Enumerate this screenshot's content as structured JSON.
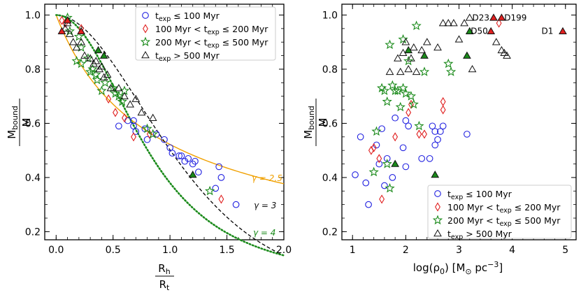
{
  "chart_data": [
    {
      "type": "scatter",
      "panel": "left",
      "xlabel_top": "R_h",
      "xlabel_bottom": "R_t",
      "ylabel_top": "M_bound",
      "ylabel_bottom": "M",
      "xlim": [
        -0.1,
        2.0
      ],
      "ylim": [
        0.17,
        1.04
      ],
      "xticks": [
        "0.0",
        "0.5",
        "1.0",
        "1.5",
        "2.0"
      ],
      "yticks": [
        "0.2",
        "0.4",
        "0.6",
        "0.8",
        "1.0"
      ],
      "xtick_values": [
        0.0,
        0.5,
        1.0,
        1.5,
        2.0
      ],
      "ytick_values": [
        0.2,
        0.4,
        0.6,
        0.8,
        1.0
      ],
      "legend": [
        {
          "label": "t_exp ≤ 100 Myr",
          "marker": "circle",
          "color": "#1f1fe0"
        },
        {
          "label": "100 Myr < t_exp ≤ 200 Myr",
          "marker": "diamond",
          "color": "#e02020"
        },
        {
          "label": "200 Myr < t_exp ≤ 500 Myr",
          "marker": "star",
          "color": "#1a8a1a"
        },
        {
          "label": "t_exp > 500 Myr",
          "marker": "triangle",
          "color": "#111111"
        }
      ],
      "legend_lines": [
        {
          "pre": "t",
          "sub": "exp",
          "post": " ≤ 100 Myr"
        },
        {
          "pre": "100 Myr < t",
          "sub": "exp",
          "post": " ≤ 200 Myr"
        },
        {
          "pre": "200 Myr < t",
          "sub": "exp",
          "post": " ≤ 500 Myr"
        },
        {
          "pre": "t",
          "sub": "exp",
          "post": " > 500 Myr"
        }
      ],
      "curves": [
        {
          "label": "γ = 2.5",
          "style": "solid",
          "color": "#f0a000"
        },
        {
          "label": "γ = 3",
          "style": "dashed",
          "color": "#000000"
        },
        {
          "label": "γ = 4",
          "style": "dotted",
          "color": "#1a8a1a"
        }
      ],
      "series": {
        "circle": [
          [
            0.55,
            0.59
          ],
          [
            0.63,
            0.61
          ],
          [
            0.68,
            0.59
          ],
          [
            0.7,
            0.57
          ],
          [
            0.68,
            0.61
          ],
          [
            0.78,
            0.58
          ],
          [
            0.8,
            0.54
          ],
          [
            0.88,
            0.56
          ],
          [
            0.95,
            0.54
          ],
          [
            1.0,
            0.51
          ],
          [
            1.02,
            0.49
          ],
          [
            1.08,
            0.48
          ],
          [
            1.1,
            0.48
          ],
          [
            1.13,
            0.46
          ],
          [
            1.16,
            0.47
          ],
          [
            1.2,
            0.45
          ],
          [
            1.22,
            0.46
          ],
          [
            1.25,
            0.42
          ],
          [
            1.43,
            0.44
          ],
          [
            1.45,
            0.4
          ],
          [
            1.4,
            0.36
          ],
          [
            1.58,
            0.3
          ]
        ],
        "diamond": [
          [
            0.05,
            0.98
          ],
          [
            0.08,
            0.97
          ],
          [
            0.22,
            0.95
          ],
          [
            0.46,
            0.69
          ],
          [
            0.52,
            0.64
          ],
          [
            0.6,
            0.62
          ],
          [
            0.68,
            0.55
          ],
          [
            1.45,
            0.32
          ],
          [
            0.82,
            0.56
          ]
        ],
        "star": [
          [
            0.1,
            0.99
          ],
          [
            0.12,
            0.94
          ],
          [
            0.2,
            0.92
          ],
          [
            0.22,
            0.88
          ],
          [
            0.28,
            0.84
          ],
          [
            0.3,
            0.79
          ],
          [
            0.18,
            0.83
          ],
          [
            0.22,
            0.82
          ],
          [
            0.32,
            0.8
          ],
          [
            0.35,
            0.78
          ],
          [
            0.36,
            0.76
          ],
          [
            0.4,
            0.72
          ],
          [
            0.43,
            0.75
          ],
          [
            0.5,
            0.73
          ],
          [
            0.52,
            0.71
          ],
          [
            0.55,
            0.7
          ],
          [
            0.58,
            0.68
          ],
          [
            0.6,
            0.72
          ],
          [
            0.8,
            0.58
          ],
          [
            0.85,
            0.56
          ],
          [
            1.35,
            0.35
          ]
        ],
        "triangle": [
          [
            0.08,
            0.95
          ],
          [
            0.1,
            0.97
          ],
          [
            0.12,
            0.93
          ],
          [
            0.15,
            0.9
          ],
          [
            0.18,
            0.88
          ],
          [
            0.22,
            0.9
          ],
          [
            0.25,
            0.85
          ],
          [
            0.3,
            0.84
          ],
          [
            0.33,
            0.82
          ],
          [
            0.35,
            0.83
          ],
          [
            0.38,
            0.8
          ],
          [
            0.4,
            0.81
          ],
          [
            0.42,
            0.77
          ],
          [
            0.45,
            0.78
          ],
          [
            0.48,
            0.73
          ],
          [
            0.55,
            0.73
          ],
          [
            0.6,
            0.7
          ],
          [
            0.65,
            0.67
          ],
          [
            0.7,
            0.69
          ],
          [
            0.75,
            0.64
          ],
          [
            0.85,
            0.62
          ]
        ],
        "triangle_filled_red": [
          [
            0.05,
            0.94
          ],
          [
            0.1,
            0.98
          ],
          [
            0.22,
            0.94
          ]
        ],
        "triangle_filled_green": [
          [
            0.37,
            0.87
          ],
          [
            0.42,
            0.85
          ],
          [
            1.2,
            0.41
          ]
        ]
      }
    },
    {
      "type": "scatter",
      "panel": "right",
      "xlabel": "log(ρ₀) [M⊙ pc⁻³]",
      "xlabel_parts": {
        "pre": "log(ρ",
        "sub": "0",
        "mid": ") [M",
        "sub2": "⊙",
        "post": " pc",
        "sup": "−3",
        "end": "]"
      },
      "ylabel_top": "M_bound",
      "ylabel_bottom": "M",
      "xlim": [
        0.8,
        5.2
      ],
      "ylim": [
        0.17,
        1.04
      ],
      "xticks": [
        "1",
        "2",
        "3",
        "4",
        "5"
      ],
      "yticks": [
        "0.2",
        "0.4",
        "0.6",
        "0.8",
        "1.0"
      ],
      "xtick_values": [
        1,
        2,
        3,
        4,
        5
      ],
      "ytick_values": [
        0.2,
        0.4,
        0.6,
        0.8,
        1.0
      ],
      "annotations": [
        {
          "text": "D23",
          "x": 3.25,
          "y": 0.99
        },
        {
          "text": "D199",
          "x": 3.85,
          "y": 0.99
        },
        {
          "text": "D50",
          "x": 3.22,
          "y": 0.94
        },
        {
          "text": "D1",
          "x": 4.55,
          "y": 0.94
        }
      ],
      "legend_lines": [
        {
          "pre": "t",
          "sub": "exp",
          "post": " ≤ 100 Myr"
        },
        {
          "pre": "100 Myr < t",
          "sub": "exp",
          "post": " ≤ 200 Myr"
        },
        {
          "pre": "200 Myr < t",
          "sub": "exp",
          "post": " ≤ 500 Myr"
        },
        {
          "pre": "t",
          "sub": "exp",
          "post": " > 500 Myr"
        }
      ],
      "series": {
        "circle": [
          [
            1.05,
            0.41
          ],
          [
            1.15,
            0.55
          ],
          [
            1.25,
            0.38
          ],
          [
            1.3,
            0.3
          ],
          [
            1.45,
            0.52
          ],
          [
            1.5,
            0.45
          ],
          [
            1.55,
            0.58
          ],
          [
            1.6,
            0.37
          ],
          [
            1.65,
            0.47
          ],
          [
            1.75,
            0.4
          ],
          [
            1.8,
            0.62
          ],
          [
            1.95,
            0.51
          ],
          [
            2.0,
            0.44
          ],
          [
            2.0,
            0.61
          ],
          [
            2.05,
            0.59
          ],
          [
            2.3,
            0.47
          ],
          [
            2.45,
            0.47
          ],
          [
            2.5,
            0.59
          ],
          [
            2.6,
            0.54
          ],
          [
            2.65,
            0.57
          ],
          [
            2.7,
            0.59
          ],
          [
            3.15,
            0.56
          ],
          [
            2.55,
            0.52
          ],
          [
            2.55,
            0.57
          ]
        ],
        "diamond": [
          [
            1.35,
            0.5
          ],
          [
            1.4,
            0.51
          ],
          [
            1.5,
            0.47
          ],
          [
            1.55,
            0.32
          ],
          [
            1.8,
            0.55
          ],
          [
            2.05,
            0.64
          ],
          [
            2.1,
            0.67
          ],
          [
            2.25,
            0.56
          ],
          [
            2.35,
            0.56
          ],
          [
            2.7,
            0.65
          ],
          [
            2.7,
            0.68
          ],
          [
            3.75,
            0.97
          ]
        ],
        "star": [
          [
            1.4,
            0.42
          ],
          [
            1.45,
            0.57
          ],
          [
            1.55,
            0.73
          ],
          [
            1.6,
            0.72
          ],
          [
            1.65,
            0.68
          ],
          [
            1.65,
            0.45
          ],
          [
            1.7,
            0.36
          ],
          [
            1.7,
            0.89
          ],
          [
            1.75,
            0.74
          ],
          [
            1.8,
            0.72
          ],
          [
            1.85,
            0.72
          ],
          [
            1.9,
            0.66
          ],
          [
            1.95,
            0.73
          ],
          [
            2.0,
            0.71
          ],
          [
            2.05,
            0.83
          ],
          [
            2.1,
            0.7
          ],
          [
            2.15,
            0.67
          ],
          [
            2.2,
            0.96
          ],
          [
            2.35,
            0.79
          ],
          [
            2.8,
            0.82
          ],
          [
            2.85,
            0.79
          ],
          [
            1.95,
            0.91
          ],
          [
            2.25,
            0.59
          ]
        ],
        "triangle": [
          [
            1.7,
            0.79
          ],
          [
            1.85,
            0.84
          ],
          [
            1.9,
            0.79
          ],
          [
            1.95,
            0.86
          ],
          [
            2.0,
            0.9
          ],
          [
            2.05,
            0.8
          ],
          [
            2.1,
            0.84
          ],
          [
            2.15,
            0.88
          ],
          [
            2.2,
            0.79
          ],
          [
            2.3,
            0.87
          ],
          [
            2.4,
            0.9
          ],
          [
            2.6,
            0.88
          ],
          [
            2.7,
            0.97
          ],
          [
            2.8,
            0.97
          ],
          [
            2.9,
            0.97
          ],
          [
            3.0,
            0.91
          ],
          [
            3.1,
            0.97
          ],
          [
            3.2,
            0.99
          ],
          [
            3.25,
            0.8
          ],
          [
            3.7,
            0.9
          ],
          [
            3.8,
            0.87
          ],
          [
            3.85,
            0.86
          ],
          [
            3.9,
            0.85
          ]
        ],
        "triangle_filled_red": [
          [
            3.65,
            0.99
          ],
          [
            3.8,
            0.99
          ],
          [
            3.6,
            0.94
          ],
          [
            4.95,
            0.94
          ]
        ],
        "triangle_filled_green": [
          [
            1.8,
            0.45
          ],
          [
            2.05,
            0.87
          ],
          [
            2.35,
            0.85
          ],
          [
            2.55,
            0.41
          ],
          [
            3.15,
            0.85
          ],
          [
            3.2,
            0.94
          ]
        ]
      }
    }
  ]
}
